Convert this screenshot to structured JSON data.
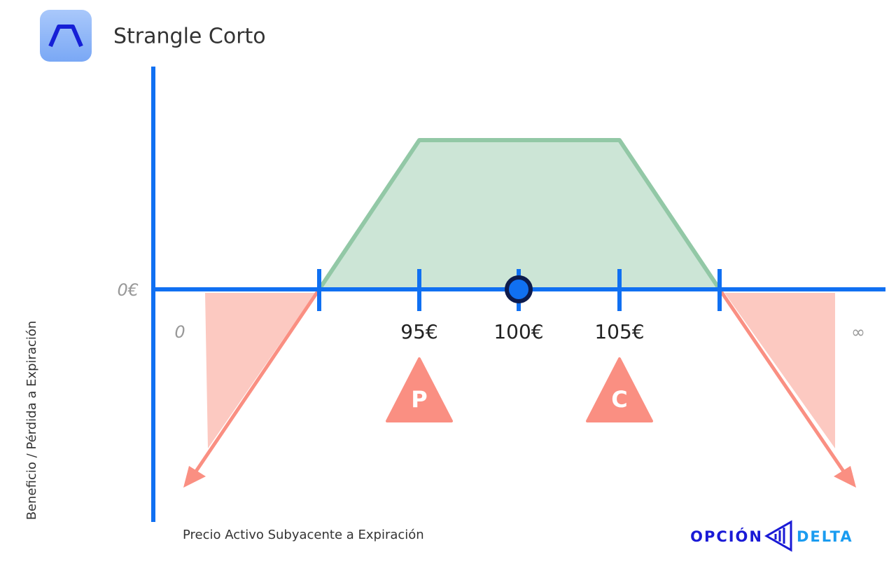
{
  "header": {
    "title": "Strangle Corto"
  },
  "axes": {
    "y_label": "Beneficio / Pérdida a Expiración",
    "x_label": "Precio Activo Subyacente a Expiración",
    "zero_label": "0€",
    "origin_label": "0",
    "infinity_label": "∞"
  },
  "strikes": [
    {
      "label": "95€"
    },
    {
      "label": "100€"
    },
    {
      "label": "105€"
    }
  ],
  "legs": [
    {
      "label": "P"
    },
    {
      "label": "C"
    }
  ],
  "brand": {
    "left": "OPCIÓN",
    "right": "DELTA"
  }
}
